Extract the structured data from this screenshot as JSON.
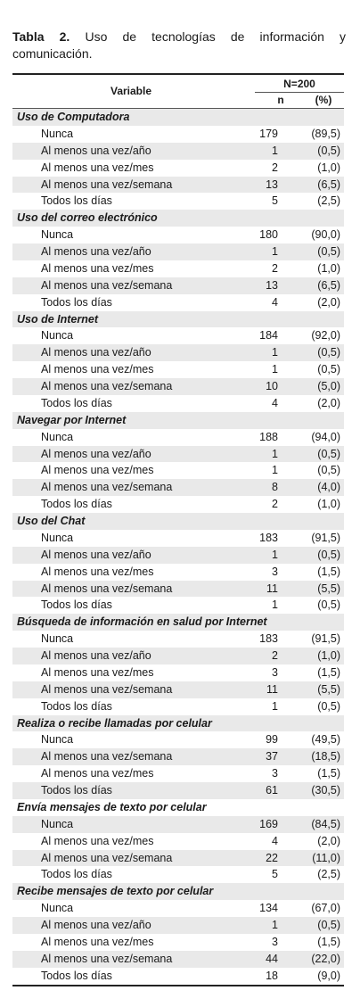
{
  "caption": {
    "label": "Tabla 2.",
    "text": "Uso de tecnologías de información y comunicación."
  },
  "header": {
    "variable": "Variable",
    "total": "N=200",
    "n": "n",
    "pct": "(%)"
  },
  "sections": [
    {
      "title": "Uso de Computadora",
      "rows": [
        [
          "Nunca",
          "179",
          "(89,5)"
        ],
        [
          "Al menos una vez/año",
          "1",
          "(0,5)"
        ],
        [
          "Al menos una vez/mes",
          "2",
          "(1,0)"
        ],
        [
          "Al menos una vez/semana",
          "13",
          "(6,5)"
        ],
        [
          "Todos los días",
          "5",
          "(2,5)"
        ]
      ]
    },
    {
      "title": "Uso del correo electrónico",
      "rows": [
        [
          "Nunca",
          "180",
          "(90,0)"
        ],
        [
          "Al menos una vez/año",
          "1",
          "(0,5)"
        ],
        [
          "Al menos una vez/mes",
          "2",
          "(1,0)"
        ],
        [
          "Al menos una vez/semana",
          "13",
          "(6,5)"
        ],
        [
          "Todos los días",
          "4",
          "(2,0)"
        ]
      ]
    },
    {
      "title": "Uso de Internet",
      "rows": [
        [
          "Nunca",
          "184",
          "(92,0)"
        ],
        [
          "Al menos una vez/año",
          "1",
          "(0,5)"
        ],
        [
          "Al menos una vez/mes",
          "1",
          "(0,5)"
        ],
        [
          "Al menos una vez/semana",
          "10",
          "(5,0)"
        ],
        [
          "Todos los días",
          "4",
          "(2,0)"
        ]
      ]
    },
    {
      "title": "Navegar por Internet",
      "rows": [
        [
          "Nunca",
          "188",
          "(94,0)"
        ],
        [
          "Al menos una vez/año",
          "1",
          "(0,5)"
        ],
        [
          "Al menos una vez/mes",
          "1",
          "(0,5)"
        ],
        [
          "Al menos una vez/semana",
          "8",
          "(4,0)"
        ],
        [
          "Todos los días",
          "2",
          "(1,0)"
        ]
      ]
    },
    {
      "title": "Uso del Chat",
      "rows": [
        [
          "Nunca",
          "183",
          "(91,5)"
        ],
        [
          "Al menos una vez/año",
          "1",
          "(0,5)"
        ],
        [
          "Al menos una vez/mes",
          "3",
          "(1,5)"
        ],
        [
          "Al menos una vez/semana",
          "11",
          "(5,5)"
        ],
        [
          "Todos los días",
          "1",
          "(0,5)"
        ]
      ]
    },
    {
      "title": "Búsqueda de información en salud por Internet",
      "rows": [
        [
          "Nunca",
          "183",
          "(91,5)"
        ],
        [
          "Al menos una vez/año",
          "2",
          "(1,0)"
        ],
        [
          "Al menos una vez/mes",
          "3",
          "(1,5)"
        ],
        [
          "Al menos una vez/semana",
          "11",
          "(5,5)"
        ],
        [
          "Todos los días",
          "1",
          "(0,5)"
        ]
      ]
    },
    {
      "title": "Realiza o recibe llamadas por celular",
      "rows": [
        [
          "Nunca",
          "99",
          "(49,5)"
        ],
        [
          "Al menos una vez/semana",
          "37",
          "(18,5)"
        ],
        [
          "Al menos una vez/mes",
          "3",
          "(1,5)"
        ],
        [
          "Todos los días",
          "61",
          "(30,5)"
        ]
      ]
    },
    {
      "title": "Envía mensajes de texto por celular",
      "rows": [
        [
          "Nunca",
          "169",
          "(84,5)"
        ],
        [
          "Al menos una vez/mes",
          "4",
          "(2,0)"
        ],
        [
          "Al menos una vez/semana",
          "22",
          "(11,0)"
        ],
        [
          "Todos los días",
          "5",
          "(2,5)"
        ]
      ]
    },
    {
      "title": "Recibe mensajes de texto por celular",
      "rows": [
        [
          "Nunca",
          "134",
          "(67,0)"
        ],
        [
          "Al menos una vez/año",
          "1",
          "(0,5)"
        ],
        [
          "Al menos una vez/mes",
          "3",
          "(1,5)"
        ],
        [
          "Al menos una vez/semana",
          "44",
          "(22,0)"
        ],
        [
          "Todos los días",
          "18",
          "(9,0)"
        ]
      ]
    }
  ]
}
